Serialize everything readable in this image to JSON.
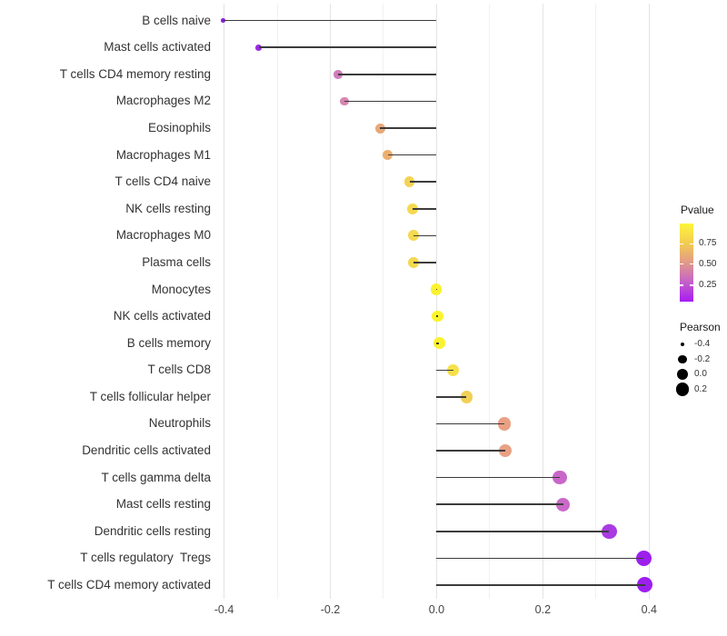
{
  "chart_data": {
    "type": "scatter",
    "subtype": "lollipop",
    "title": "",
    "xlabel": "",
    "ylabel": "",
    "xlim": [
      -0.442,
      0.432
    ],
    "grid": "vertical-only",
    "x_ticks": [
      {
        "value": -0.4,
        "label": "-0.4"
      },
      {
        "value": -0.2,
        "label": "-0.2"
      },
      {
        "value": 0.0,
        "label": "0.0"
      },
      {
        "value": 0.2,
        "label": "0.2"
      },
      {
        "value": 0.4,
        "label": "0.4"
      }
    ],
    "gridlines": {
      "major": [
        -0.4,
        -0.2,
        0.0,
        0.2,
        0.4
      ],
      "minor": [
        -0.3,
        -0.1,
        0.1,
        0.3
      ]
    },
    "points": [
      {
        "label": "B cells naive",
        "pearson": -0.402,
        "color": "#8E22E8"
      },
      {
        "label": "Mast cells activated",
        "pearson": -0.335,
        "color": "#9C2BE3"
      },
      {
        "label": "T cells CD4 memory resting",
        "pearson": -0.185,
        "color": "#D07EBB"
      },
      {
        "label": "Macrophages M2",
        "pearson": -0.173,
        "color": "#D685AF"
      },
      {
        "label": "Eosinophils",
        "pearson": -0.106,
        "color": "#E9A878"
      },
      {
        "label": "Macrophages M1",
        "pearson": -0.092,
        "color": "#ECAF6F"
      },
      {
        "label": "T cells CD4 naive",
        "pearson": -0.051,
        "color": "#F3D355"
      },
      {
        "label": "NK cells resting",
        "pearson": -0.045,
        "color": "#F5D94F"
      },
      {
        "label": "Macrophages M0",
        "pearson": -0.043,
        "color": "#F5D94F"
      },
      {
        "label": "Plasma cells",
        "pearson": -0.044,
        "color": "#F5D84F"
      },
      {
        "label": "Monocytes",
        "pearson": -0.001,
        "color": "#FBF22F"
      },
      {
        "label": "NK cells activated",
        "pearson": 0.002,
        "color": "#FAF42C"
      },
      {
        "label": "B cells memory",
        "pearson": 0.005,
        "color": "#FAF22F"
      },
      {
        "label": "T cells CD8",
        "pearson": 0.031,
        "color": "#F6E04A"
      },
      {
        "label": "T cells follicular helper",
        "pearson": 0.056,
        "color": "#F2CF56"
      },
      {
        "label": "Neutrophils",
        "pearson": 0.128,
        "color": "#E9A083"
      },
      {
        "label": "Dendritic cells activated",
        "pearson": 0.13,
        "color": "#E8A184"
      },
      {
        "label": "T cells gamma delta",
        "pearson": 0.232,
        "color": "#C966C9"
      },
      {
        "label": "Mast cells resting",
        "pearson": 0.238,
        "color": "#CA6AC8"
      },
      {
        "label": "Dendritic cells resting",
        "pearson": 0.325,
        "color": "#AA3BE3"
      },
      {
        "label": "T cells regulatory  Tregs",
        "pearson": 0.39,
        "color": "#9D1FEE"
      },
      {
        "label": "T cells CD4 memory activated",
        "pearson": 0.392,
        "color": "#9D1FEF"
      }
    ],
    "legends": {
      "color": {
        "title": "Pvalue",
        "tick_labels": [
          "0.75",
          "0.50",
          "0.25"
        ],
        "gradient_top_to_bottom": [
          "#FCF53B",
          "#F3CC51",
          "#E29A89",
          "#C561C9",
          "#A81BF2"
        ]
      },
      "size": {
        "title": "Pearson",
        "items": [
          {
            "label": "-0.4",
            "value": -0.4
          },
          {
            "label": "-0.2",
            "value": -0.2
          },
          {
            "label": "0.0",
            "value": 0.0
          },
          {
            "label": "0.2",
            "value": 0.2
          }
        ]
      }
    },
    "style_colors": {
      "stem": "#3C3C3C",
      "grid_major": "#E4E4E4",
      "grid_minor": "#F1F1F1",
      "axis_text": "#454545",
      "category_text": "#333333"
    }
  }
}
